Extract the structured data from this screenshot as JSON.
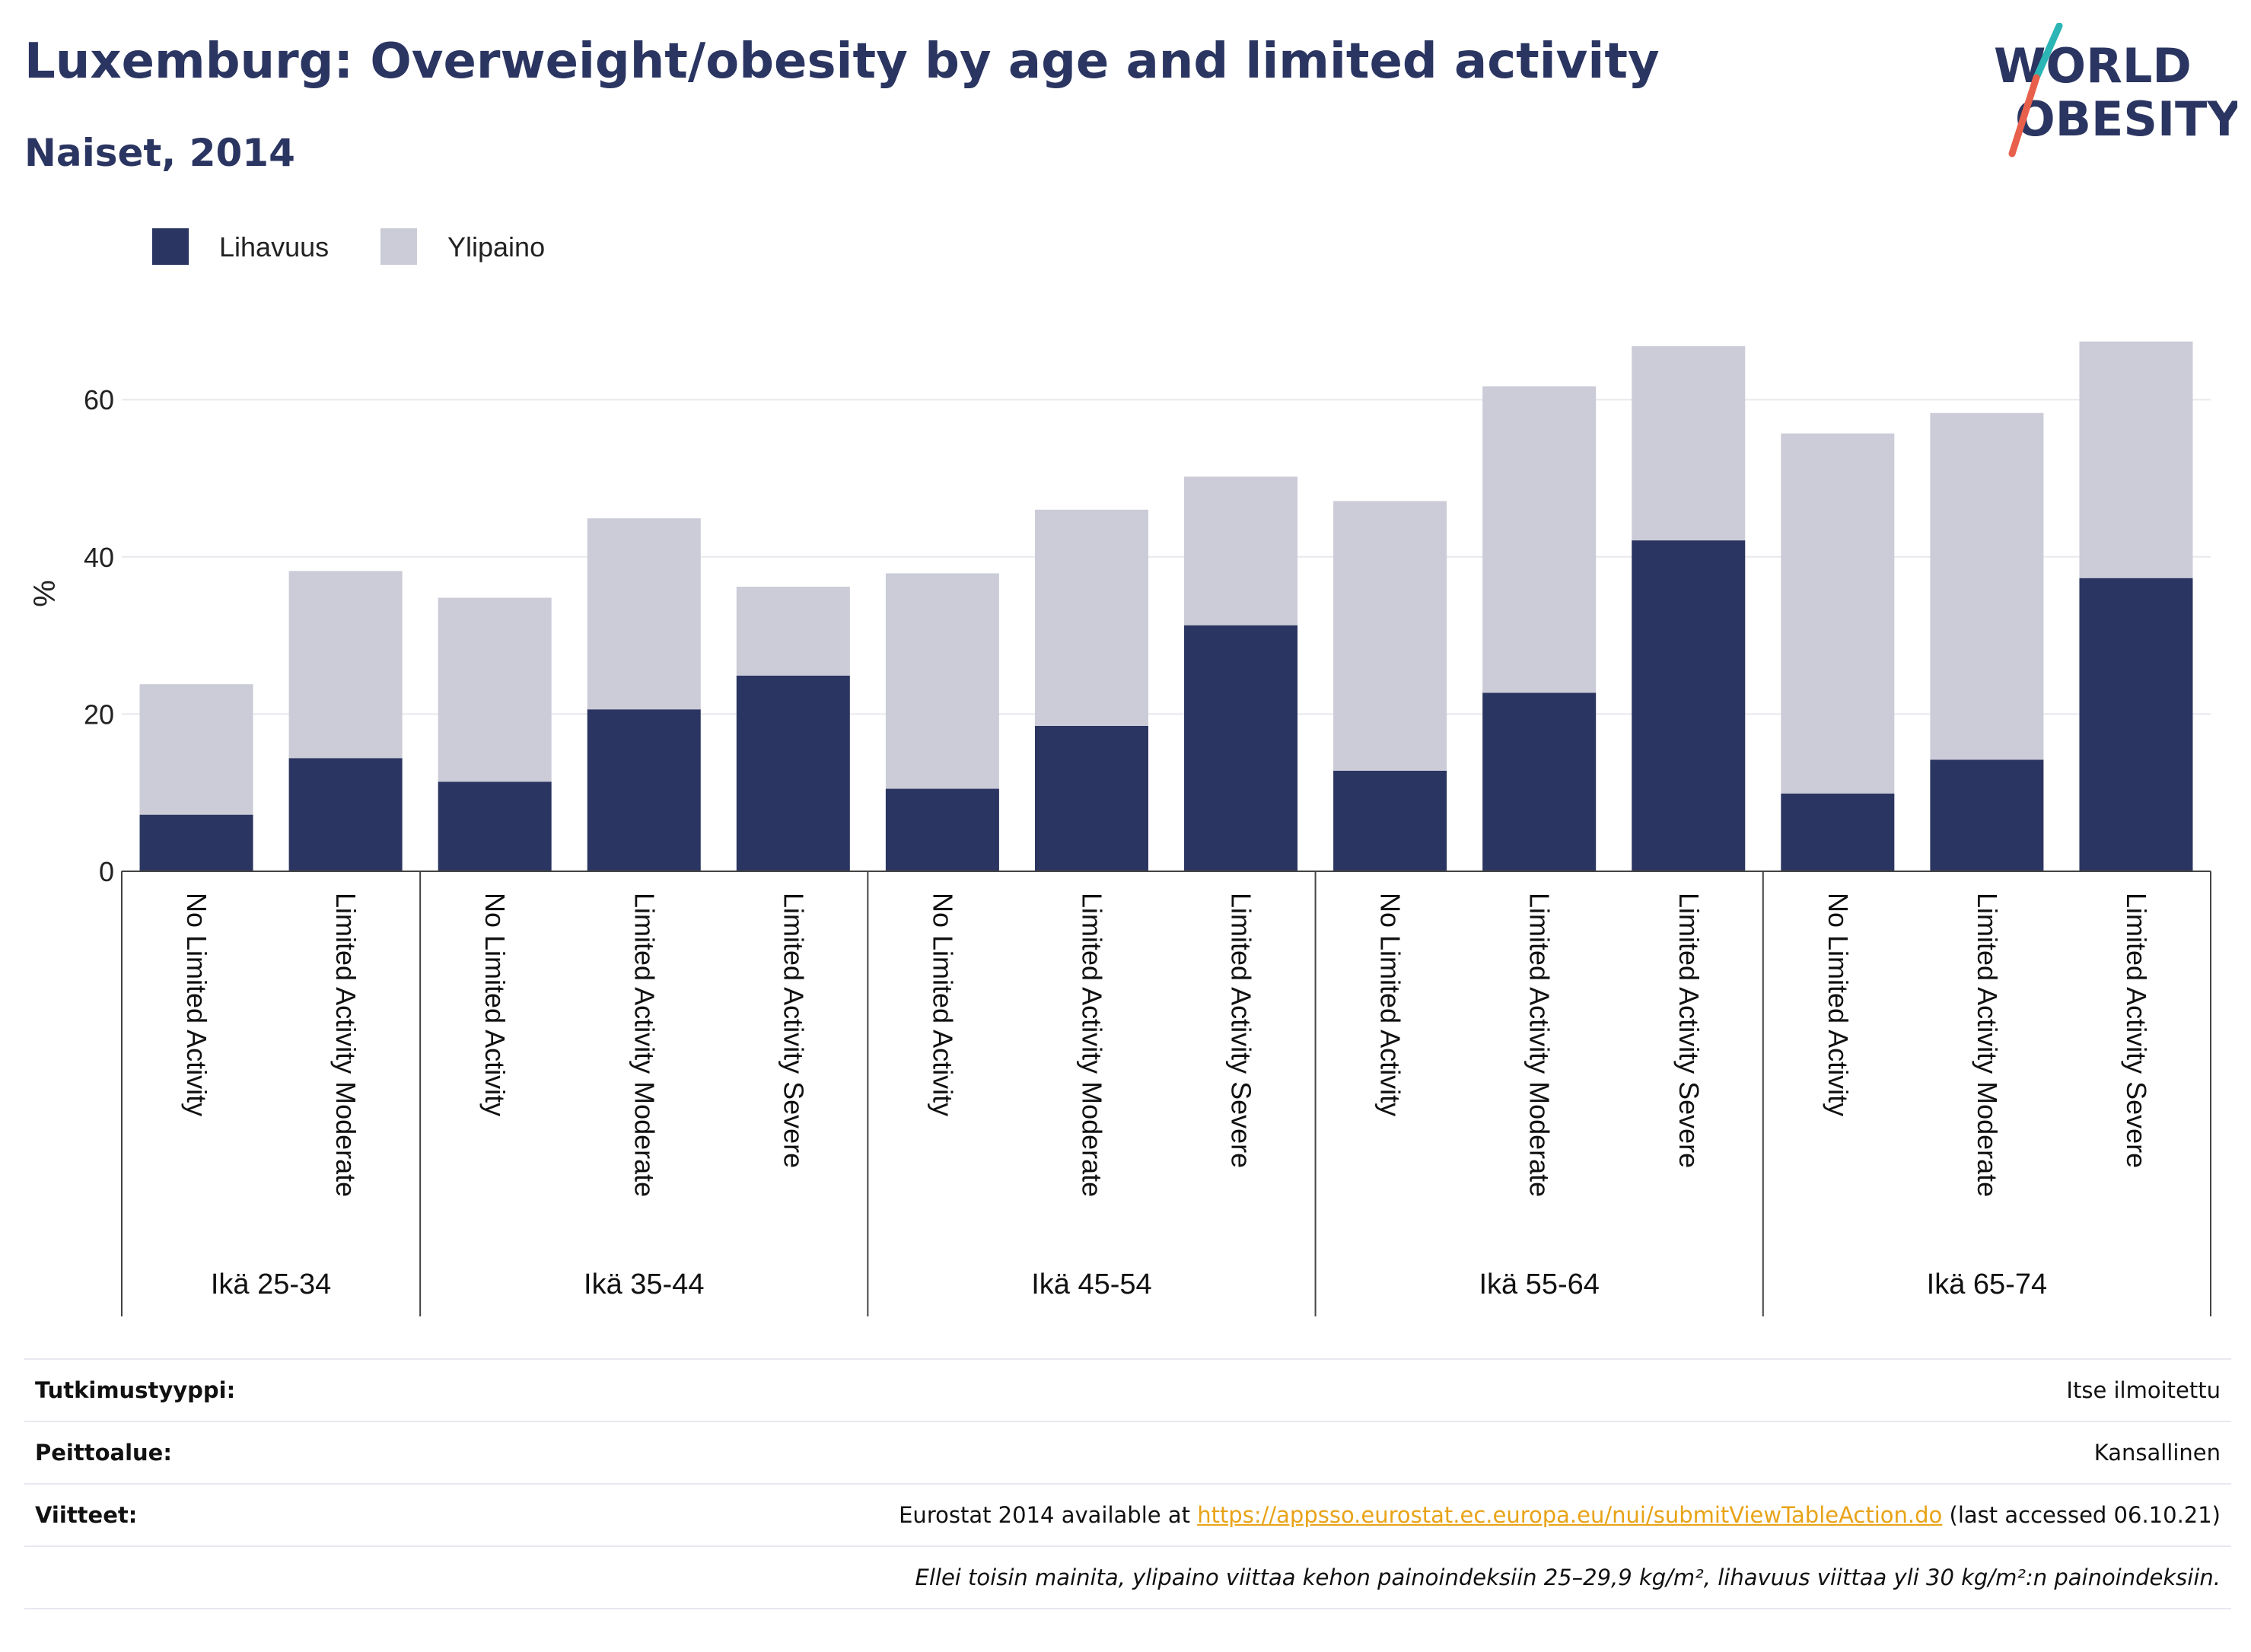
{
  "header": {
    "title": "Luxemburg: Overweight/obesity by age and limited activity",
    "subtitle": "Naiset, 2014",
    "logo_line1": "WORLD",
    "logo_line2": "OBESITY"
  },
  "colors": {
    "obesity": "#2b3561",
    "overweight": "#cbccd8",
    "title": "#2b3561",
    "link": "#e8a317",
    "logo_teal": "#2bb5b5",
    "logo_red": "#e8604c"
  },
  "chart_data": {
    "type": "bar",
    "stacked": true,
    "ylabel": "%",
    "ylim": [
      0,
      70
    ],
    "yticks": [
      0,
      20,
      40,
      60
    ],
    "grid": true,
    "legend_position": "top-left",
    "groups": [
      {
        "label": "Ikä 25-34",
        "categories": [
          "No Limited Activity",
          "Limited Activity Moderate"
        ]
      },
      {
        "label": "Ikä 35-44",
        "categories": [
          "No Limited Activity",
          "Limited Activity Moderate",
          "Limited Activity Severe"
        ]
      },
      {
        "label": "Ikä 45-54",
        "categories": [
          "No Limited Activity",
          "Limited Activity Moderate",
          "Limited Activity Severe"
        ]
      },
      {
        "label": "Ikä 55-64",
        "categories": [
          "No Limited Activity",
          "Limited Activity Moderate",
          "Limited Activity Severe"
        ]
      },
      {
        "label": "Ikä 65-74",
        "categories": [
          "No Limited Activity",
          "Limited Activity Moderate",
          "Limited Activity Severe"
        ]
      }
    ],
    "series": [
      {
        "name": "Lihavuus",
        "color": "#2b3561",
        "values": [
          7.2,
          14.4,
          11.4,
          20.6,
          24.9,
          10.5,
          18.5,
          31.3,
          12.8,
          22.7,
          42.1,
          9.9,
          14.2,
          37.3
        ]
      },
      {
        "name": "Ylipaino",
        "color": "#cbccd8",
        "values": [
          16.6,
          23.8,
          23.4,
          24.3,
          11.3,
          27.4,
          27.5,
          18.9,
          34.3,
          39.0,
          24.7,
          45.8,
          44.1,
          30.1
        ]
      }
    ]
  },
  "info": {
    "rows": [
      {
        "label": "Tutkimustyyppi:",
        "value": "Itse ilmoitettu"
      },
      {
        "label": "Peittoalue:",
        "value": "Kansallinen"
      }
    ],
    "references": {
      "label": "Viitteet:",
      "prefix": "Eurostat 2014 available at ",
      "link": "https://appsso.eurostat.ec.europa.eu/nui/submitViewTableAction.do",
      "suffix": " (last accessed 06.10.21)"
    },
    "note": "Ellei toisin mainita, ylipaino viittaa kehon painoindeksiin 25–29,9 kg/m², lihavuus viittaa yli 30 kg/m²:n painoindeksiin."
  }
}
